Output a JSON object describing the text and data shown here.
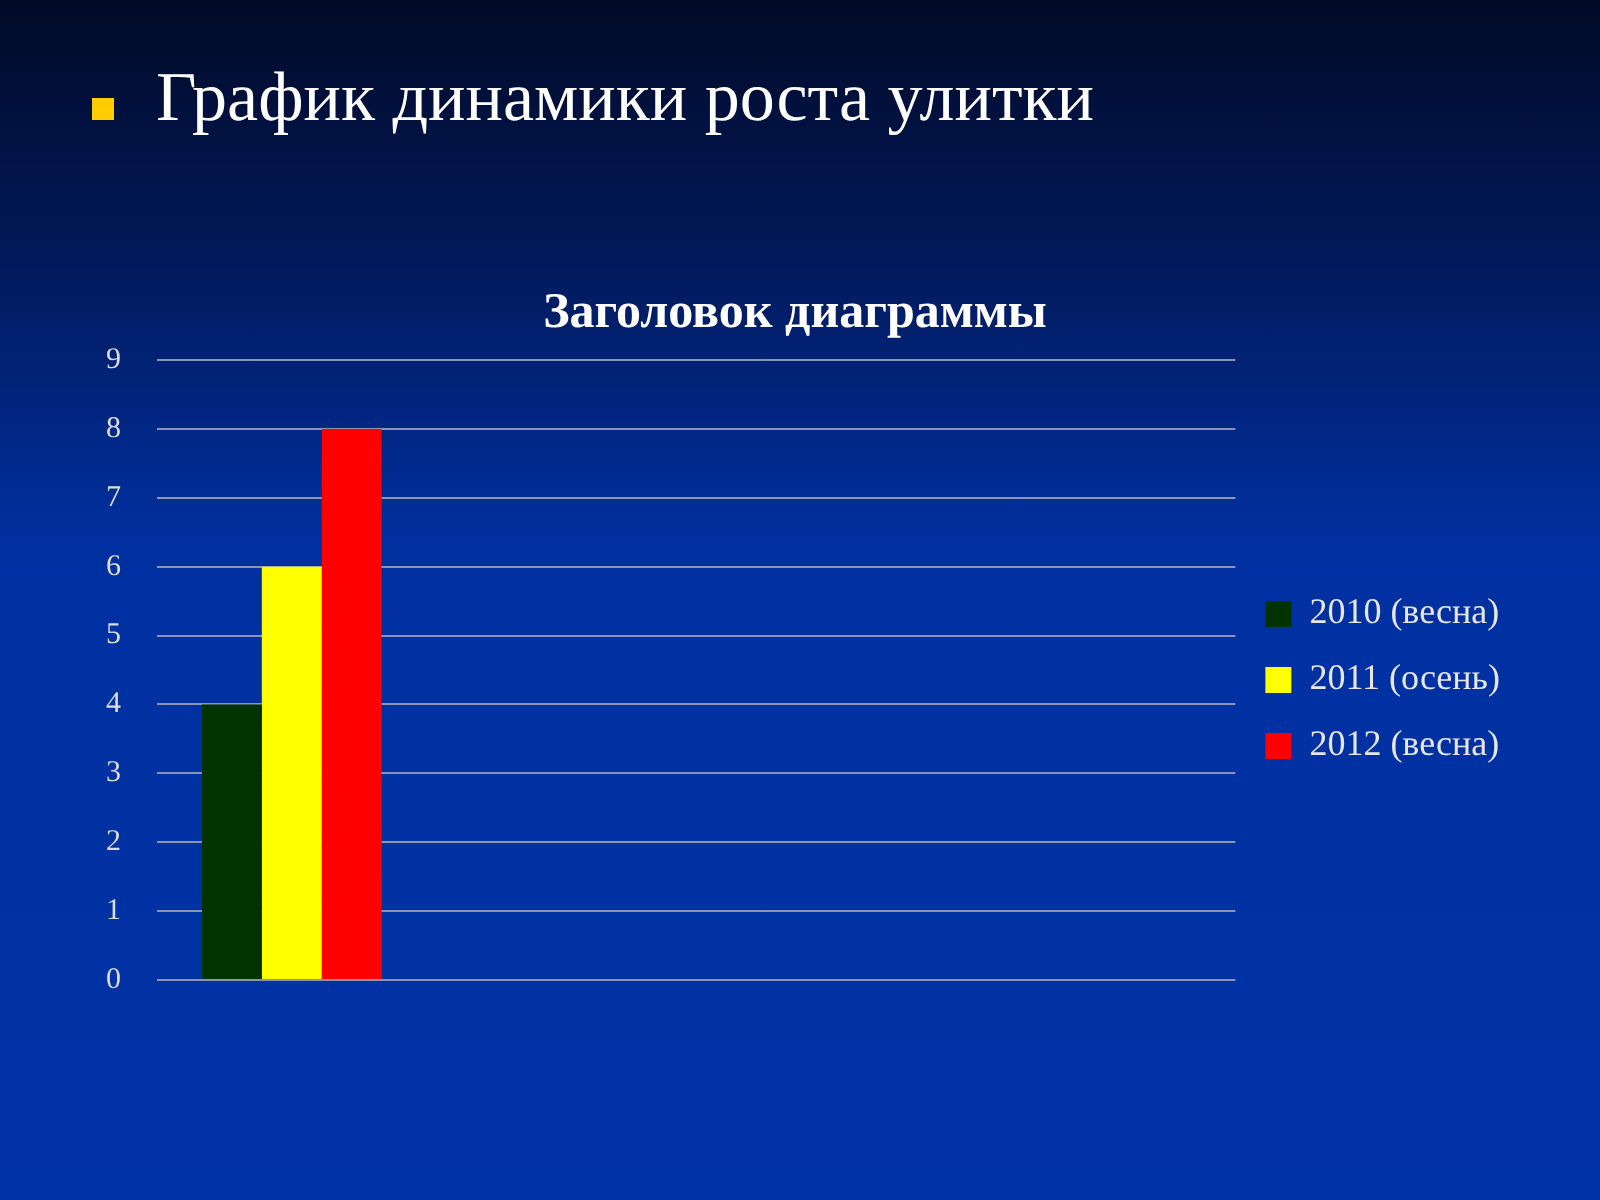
{
  "chart_data": {
    "type": "bar",
    "title": "График динамики роста улитки",
    "subtitle": "Заголовок диаграммы",
    "categories": [
      null,
      null,
      null,
      null
    ],
    "series": [
      {
        "name": "2010 (весна)",
        "color": "#003300",
        "values": [
          4,
          null,
          null,
          null
        ]
      },
      {
        "name": "2011 (осень)",
        "color": "#ffff00",
        "values": [
          6,
          null,
          null,
          null
        ]
      },
      {
        "name": "2012 (весна)",
        "color": "#ff0000",
        "values": [
          8,
          null,
          null,
          null
        ]
      }
    ],
    "ylim": [
      0,
      9
    ],
    "yticks": [
      0,
      1,
      2,
      3,
      4,
      5,
      6,
      7,
      8,
      9
    ],
    "grid": "y",
    "legend": "right",
    "tick_labels": "y"
  }
}
